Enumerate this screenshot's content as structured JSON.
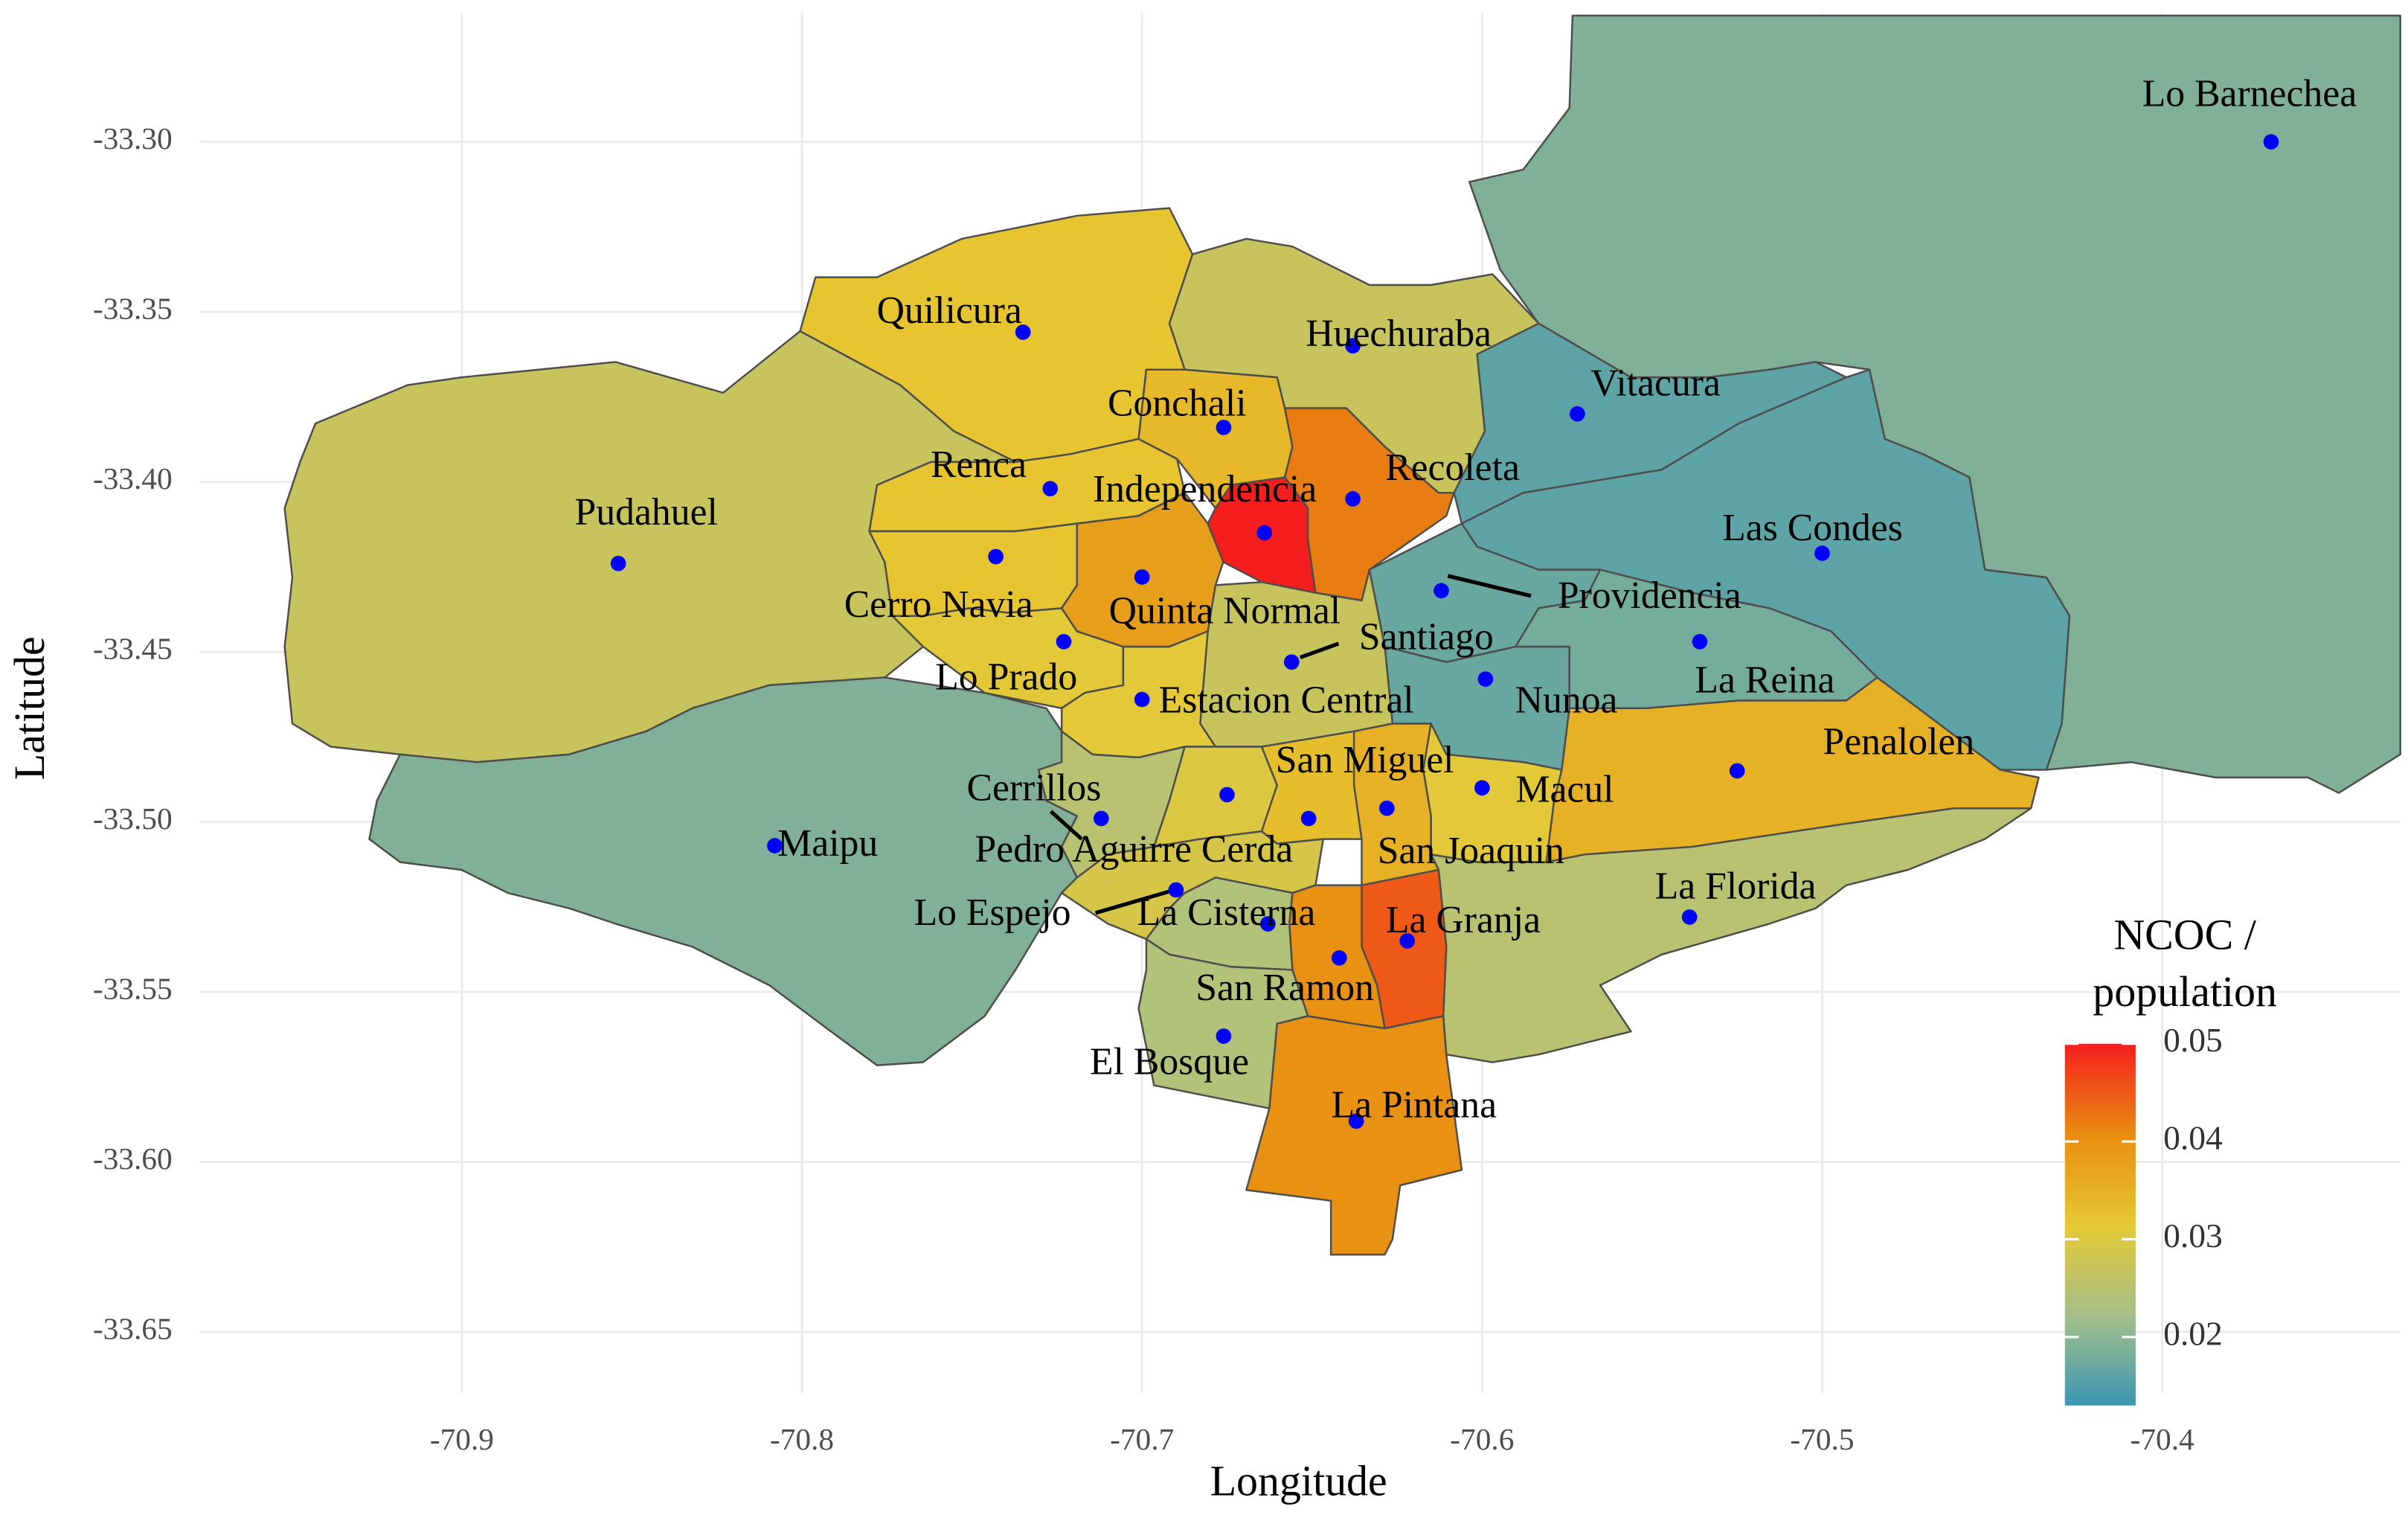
{
  "chart_data": {
    "type": "choropleth",
    "xlabel": "Longitude",
    "ylabel": "Latitude",
    "xlim": [
      -70.977,
      -70.33
    ],
    "ylim": [
      -33.668,
      -33.262
    ],
    "xticks": [
      -70.9,
      -70.8,
      -70.7,
      -70.6,
      -70.5,
      -70.4
    ],
    "yticks": [
      {
        "value": -33.3,
        "label": "-33.30"
      },
      {
        "value": -33.35,
        "label": "-33.35"
      },
      {
        "value": -33.4,
        "label": "-33.40"
      },
      {
        "value": -33.45,
        "label": "-33.45"
      },
      {
        "value": -33.5,
        "label": "-33.50"
      },
      {
        "value": -33.55,
        "label": "-33.55"
      },
      {
        "value": -33.6,
        "label": "-33.60"
      },
      {
        "value": -33.65,
        "label": "-33.65"
      }
    ],
    "grid": true,
    "point_color": "#0000ff",
    "border_color": "#4d4d4d",
    "legend": {
      "title": [
        "NCOC /",
        "population"
      ],
      "lim": [
        0.013,
        0.05
      ],
      "ticks": [
        0.02,
        0.03,
        0.04,
        0.05
      ],
      "colors": [
        "#3b96b3",
        "#a6c08a",
        "#e6c832",
        "#e88c10",
        "#f51e1e"
      ]
    },
    "regions": [
      {
        "name": "Lo Barnechea",
        "lon": -70.368,
        "lat": -33.3,
        "value": 0.019
      },
      {
        "name": "Vitacura",
        "lon": -70.572,
        "lat": -33.38,
        "value": 0.016
      },
      {
        "name": "Las Condes",
        "lon": -70.5,
        "lat": -33.421,
        "value": 0.016
      },
      {
        "name": "Providencia",
        "lon": -70.612,
        "lat": -33.432,
        "value": 0.017
      },
      {
        "name": "La Reina",
        "lon": -70.536,
        "lat": -33.447,
        "value": 0.018
      },
      {
        "name": "Nunoa",
        "lon": -70.599,
        "lat": -33.458,
        "value": 0.017
      },
      {
        "name": "Penalolen",
        "lon": -70.525,
        "lat": -33.485,
        "value": 0.035
      },
      {
        "name": "Macul",
        "lon": -70.6,
        "lat": -33.49,
        "value": 0.031
      },
      {
        "name": "La Florida",
        "lon": -70.539,
        "lat": -33.528,
        "value": 0.025
      },
      {
        "name": "Huechuraba",
        "lon": -70.638,
        "lat": -33.36,
        "value": 0.027
      },
      {
        "name": "Quilicura",
        "lon": -70.735,
        "lat": -33.356,
        "value": 0.032
      },
      {
        "name": "Pudahuel",
        "lon": -70.854,
        "lat": -33.424,
        "value": 0.027
      },
      {
        "name": "Maipu",
        "lon": -70.808,
        "lat": -33.507,
        "value": 0.019
      },
      {
        "name": "Renca",
        "lon": -70.727,
        "lat": -33.402,
        "value": 0.032
      },
      {
        "name": "Cerro Navia",
        "lon": -70.743,
        "lat": -33.422,
        "value": 0.032
      },
      {
        "name": "Lo Prado",
        "lon": -70.723,
        "lat": -33.447,
        "value": 0.031
      },
      {
        "name": "Conchali",
        "lon": -70.676,
        "lat": -33.384,
        "value": 0.034
      },
      {
        "name": "Independencia",
        "lon": -70.664,
        "lat": -33.415,
        "value": 0.05
      },
      {
        "name": "Recoleta",
        "lon": -70.638,
        "lat": -33.405,
        "value": 0.042
      },
      {
        "name": "Quinta Normal",
        "lon": -70.7,
        "lat": -33.428,
        "value": 0.038
      },
      {
        "name": "Santiago",
        "lon": -70.656,
        "lat": -33.453,
        "value": 0.027
      },
      {
        "name": "Estacion Central",
        "lon": -70.7,
        "lat": -33.464,
        "value": 0.031
      },
      {
        "name": "Cerrillos",
        "lon": -70.712,
        "lat": -33.499,
        "value": 0.025
      },
      {
        "name": "Pedro Aguirre Cerda",
        "lon": -70.675,
        "lat": -33.492,
        "value": 0.03
      },
      {
        "name": "San Miguel",
        "lon": -70.651,
        "lat": -33.499,
        "value": 0.033
      },
      {
        "name": "San Joaquin",
        "lon": -70.628,
        "lat": -33.496,
        "value": 0.035
      },
      {
        "name": "Lo Espejo",
        "lon": -70.69,
        "lat": -33.52,
        "value": 0.029
      },
      {
        "name": "La Cisterna",
        "lon": -70.663,
        "lat": -33.53,
        "value": 0.024
      },
      {
        "name": "La Granja",
        "lon": -70.622,
        "lat": -33.535,
        "value": 0.045
      },
      {
        "name": "San Ramon",
        "lon": -70.642,
        "lat": -33.54,
        "value": 0.04
      },
      {
        "name": "El Bosque",
        "lon": -70.676,
        "lat": -33.563,
        "value": 0.024
      },
      {
        "name": "La Pintana",
        "lon": -70.637,
        "lat": -33.588,
        "value": 0.04
      }
    ]
  }
}
